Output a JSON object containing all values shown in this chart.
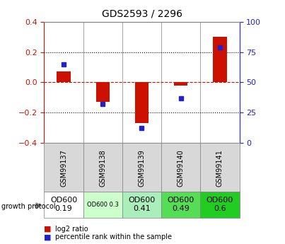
{
  "title": "GDS2593 / 2296",
  "samples": [
    "GSM99137",
    "GSM99138",
    "GSM99139",
    "GSM99140",
    "GSM99141"
  ],
  "log2_ratio": [
    0.07,
    -0.13,
    -0.27,
    -0.02,
    0.3
  ],
  "percentile_rank": [
    65,
    32,
    12,
    37,
    79
  ],
  "bar_color": "#cc1100",
  "dot_color": "#2222cc",
  "ylim": [
    -0.4,
    0.4
  ],
  "y2lim": [
    0,
    100
  ],
  "yticks_left": [
    -0.4,
    -0.2,
    0.0,
    0.2,
    0.4
  ],
  "yticks_right": [
    0,
    25,
    50,
    75,
    100
  ],
  "dotted_levels": [
    -0.2,
    0.2
  ],
  "zero_line_color": "#cc1100",
  "growth_labels": [
    "OD600\n0.19",
    "OD600 0.3",
    "OD600\n0.41",
    "OD600\n0.49",
    "OD600\n0.6"
  ],
  "growth_colors": [
    "#ffffff",
    "#ccffcc",
    "#aaeebb",
    "#55dd55",
    "#22cc22"
  ],
  "growth_text_sizes": [
    8,
    6,
    8,
    8,
    8
  ],
  "sample_bg": "#d8d8d8",
  "plot_bg": "#ffffff",
  "bar_width": 0.35
}
